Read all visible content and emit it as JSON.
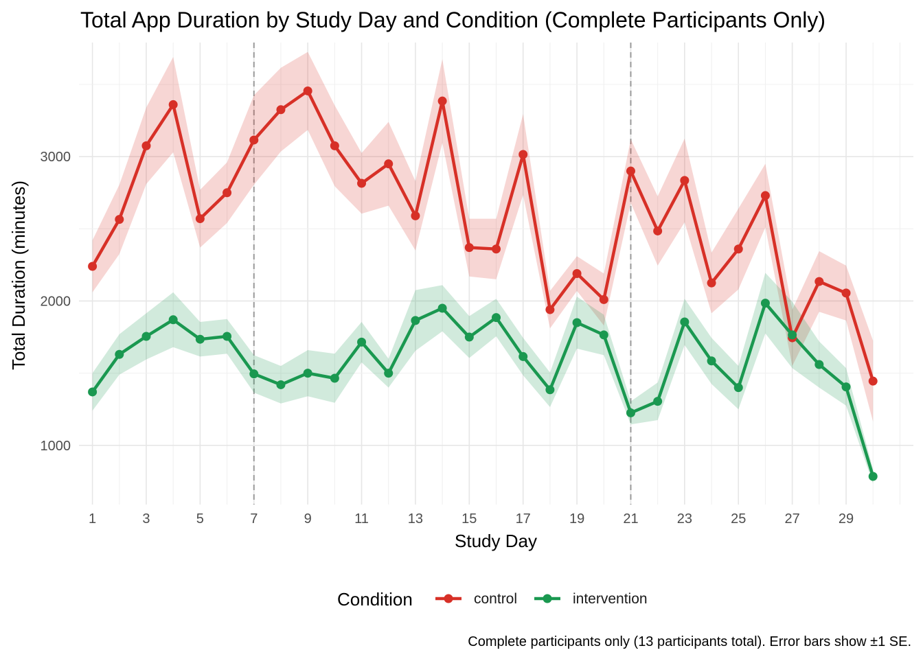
{
  "chart_data": {
    "type": "line",
    "title": "Total App Duration by Study Day and Condition (Complete Participants Only)",
    "xlabel": "Study Day",
    "ylabel": "Total Duration (minutes)",
    "caption": "Complete participants only (13 participants total). Error bars show ±1 SE.",
    "x": [
      1,
      2,
      3,
      4,
      5,
      6,
      7,
      8,
      9,
      10,
      11,
      12,
      13,
      14,
      15,
      16,
      17,
      18,
      19,
      20,
      21,
      22,
      23,
      24,
      25,
      26,
      27,
      28,
      29,
      30
    ],
    "x_ticks": [
      1,
      3,
      5,
      7,
      9,
      11,
      13,
      15,
      17,
      19,
      21,
      23,
      25,
      27,
      29
    ],
    "y_ticks": [
      1000,
      2000,
      3000
    ],
    "xlim": [
      0.5,
      31.5
    ],
    "ylim": [
      590,
      3790
    ],
    "reference_lines_x": [
      7,
      21
    ],
    "legend": {
      "title": "Condition",
      "position": "bottom"
    },
    "grid": true,
    "series": [
      {
        "name": "control",
        "color": "#d73027",
        "values": [
          2240,
          2565,
          3075,
          3360,
          2570,
          2750,
          3115,
          3325,
          3455,
          3075,
          2815,
          2950,
          2590,
          3385,
          2370,
          2360,
          3015,
          1940,
          2190,
          2010,
          2900,
          2485,
          2835,
          2125,
          2360,
          2730,
          1745,
          2135,
          2055,
          1445
        ],
        "se": [
          180,
          240,
          265,
          330,
          200,
          210,
          310,
          290,
          270,
          280,
          210,
          290,
          240,
          290,
          200,
          210,
          280,
          130,
          120,
          180,
          220,
          240,
          290,
          210,
          280,
          220,
          195,
          210,
          190,
          280
        ]
      },
      {
        "name": "intervention",
        "color": "#1a9850",
        "values": [
          1370,
          1630,
          1755,
          1870,
          1735,
          1755,
          1495,
          1420,
          1500,
          1465,
          1715,
          1500,
          1865,
          1950,
          1750,
          1885,
          1615,
          1385,
          1850,
          1765,
          1225,
          1305,
          1855,
          1585,
          1400,
          1985,
          1765,
          1560,
          1405,
          785
        ],
        "se": [
          130,
          140,
          160,
          190,
          120,
          120,
          130,
          130,
          160,
          170,
          140,
          100,
          210,
          160,
          145,
          130,
          130,
          120,
          180,
          140,
          80,
          130,
          160,
          160,
          150,
          210,
          230,
          160,
          130,
          50
        ]
      }
    ]
  }
}
